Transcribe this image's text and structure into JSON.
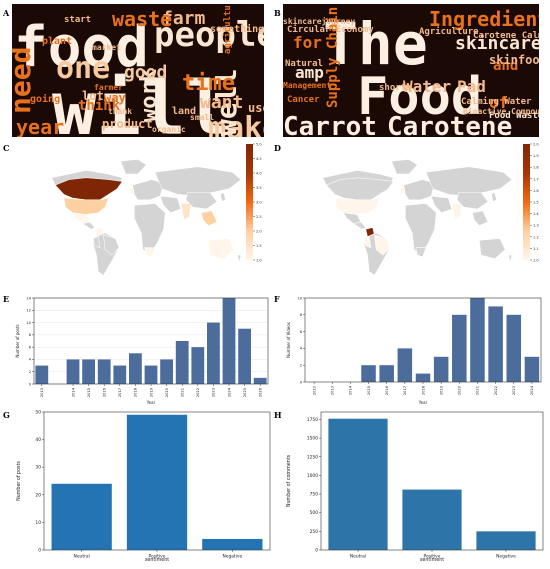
{
  "panels": {
    "A": "A",
    "B": "B",
    "C": "C",
    "D": "D",
    "E": "E",
    "F": "F",
    "G": "G",
    "H": "H"
  },
  "wordcloud_a": {
    "words": [
      {
        "text": "food",
        "weight": 10,
        "color": "#fdf0e2"
      },
      {
        "text": "will",
        "weight": 10,
        "color": "#fdf0e2"
      },
      {
        "text": "need",
        "weight": 5,
        "color": "#e8711c"
      },
      {
        "text": "year",
        "weight": 5,
        "color": "#e8711c"
      },
      {
        "text": "makes",
        "weight": 5,
        "color": "#f7c9a0"
      },
      {
        "text": "people",
        "weight": 6,
        "color": "#fbe6d2"
      },
      {
        "text": "one",
        "weight": 5,
        "color": "#f7c9a0"
      },
      {
        "text": "work",
        "weight": 4,
        "color": "#fbe6d2"
      },
      {
        "text": "well",
        "weight": 5,
        "color": "#fbe6d2"
      },
      {
        "text": "farm",
        "weight": 4,
        "color": "#f3b98d"
      },
      {
        "text": "waste",
        "weight": 3,
        "color": "#e8711c"
      },
      {
        "text": "time",
        "weight": 4,
        "color": "#e8711c"
      },
      {
        "text": "good",
        "weight": 3,
        "color": "#f7c9a0"
      },
      {
        "text": "want",
        "weight": 3,
        "color": "#f3b98d"
      },
      {
        "text": "think",
        "weight": 3,
        "color": "#e8711c"
      },
      {
        "text": "product",
        "weight": 2,
        "color": "#f3b98d"
      },
      {
        "text": "plant",
        "weight": 2,
        "color": "#e8711c"
      },
      {
        "text": "lot",
        "weight": 2,
        "color": "#f3b98d"
      },
      {
        "text": "way",
        "weight": 2,
        "color": "#e8711c"
      },
      {
        "text": "use",
        "weight": 2,
        "color": "#f3b98d"
      },
      {
        "text": "farmer",
        "weight": 1,
        "color": "#e8711c"
      },
      {
        "text": "land",
        "weight": 1,
        "color": "#f3b98d"
      },
      {
        "text": "thank",
        "weight": 1,
        "color": "#f3b98d"
      },
      {
        "text": "small",
        "weight": 1,
        "color": "#f3b98d"
      },
      {
        "text": "going",
        "weight": 1,
        "color": "#e8711c"
      },
      {
        "text": "organic",
        "weight": 1,
        "color": "#f3b98d"
      },
      {
        "text": "market",
        "weight": 1,
        "color": "#f3b98d"
      },
      {
        "text": "something",
        "weight": 1,
        "color": "#f3b98d"
      },
      {
        "text": "agriculture",
        "weight": 1,
        "color": "#e8711c"
      },
      {
        "text": "start",
        "weight": 1,
        "color": "#f3b98d"
      }
    ]
  },
  "wordcloud_b": {
    "words": [
      {
        "text": "The",
        "weight": 10,
        "color": "#fdf0e2"
      },
      {
        "text": "Food",
        "weight": 10,
        "color": "#fdf0e2"
      },
      {
        "text": "Carrot",
        "weight": 6,
        "color": "#fdf0e2"
      },
      {
        "text": "Carotene",
        "weight": 6,
        "color": "#fdf0e2"
      },
      {
        "text": "Ingredients",
        "weight": 4,
        "color": "#e8711c"
      },
      {
        "text": "skincare",
        "weight": 4,
        "color": "#fbe6d2"
      },
      {
        "text": "and",
        "weight": 4,
        "color": "#e8711c"
      },
      {
        "text": "Supply Chain",
        "weight": 3,
        "color": "#e8711c"
      },
      {
        "text": "Water",
        "weight": 3,
        "color": "#f3b98d"
      },
      {
        "text": "Pad",
        "weight": 3,
        "color": "#f3b98d"
      },
      {
        "text": "skinfood",
        "weight": 2,
        "color": "#f3b98d"
      },
      {
        "text": "for",
        "weight": 3,
        "color": "#e8711c"
      },
      {
        "text": "amp",
        "weight": 2,
        "color": "#fbe6d2"
      },
      {
        "text": "of",
        "weight": 3,
        "color": "#e8711c"
      },
      {
        "text": "Carotene Calming",
        "weight": 1,
        "color": "#f3b98d"
      },
      {
        "text": "Calming Water",
        "weight": 1,
        "color": "#f3b98d"
      },
      {
        "text": "Food Waste",
        "weight": 1,
        "color": "#fbe6d2"
      },
      {
        "text": "Circular Economy",
        "weight": 1,
        "color": "#f3b98d"
      },
      {
        "text": "Agriculture",
        "weight": 1,
        "color": "#f3b98d"
      },
      {
        "text": "Natural",
        "weight": 1,
        "color": "#f3b98d"
      },
      {
        "text": "shorts",
        "weight": 1,
        "color": "#f3b98d"
      },
      {
        "text": "Management",
        "weight": 1,
        "color": "#e8711c"
      },
      {
        "text": "Bioactive Compound",
        "weight": 1,
        "color": "#f3b98d"
      },
      {
        "text": "Cancer",
        "weight": 1,
        "color": "#e8711c"
      },
      {
        "text": "skincarejourney",
        "weight": 1,
        "color": "#f3b98d"
      }
    ]
  },
  "map_c": {
    "colorbar": {
      "min": 1.0,
      "max": 5.0,
      "ticks": [
        "5.0",
        "4.5",
        "4.0",
        "3.5",
        "3.0",
        "2.5",
        "2.0",
        "1.5",
        "1.0"
      ]
    },
    "highlighted": [
      {
        "region": "canada",
        "value": 5.0
      },
      {
        "region": "usa",
        "value": 2.0
      },
      {
        "region": "mexico",
        "value": 1.0
      },
      {
        "region": "colombia",
        "value": 1.0
      },
      {
        "region": "uk",
        "value": 1.0
      },
      {
        "region": "south-africa",
        "value": 1.0
      },
      {
        "region": "india",
        "value": 1.5
      },
      {
        "region": "southeast-asia",
        "value": 2.0
      },
      {
        "region": "australia",
        "value": 1.0
      }
    ]
  },
  "map_d": {
    "colorbar": {
      "min": 1.0,
      "max": 2.0,
      "ticks": [
        "2.0",
        "1.9",
        "1.8",
        "1.7",
        "1.6",
        "1.5",
        "1.4",
        "1.3",
        "1.2",
        "1.1",
        "1.0"
      ]
    },
    "highlighted": [
      {
        "region": "colombia",
        "value": 2.0
      },
      {
        "region": "usa",
        "value": 1.0
      },
      {
        "region": "uk",
        "value": 1.0
      },
      {
        "region": "brazil",
        "value": 1.0
      },
      {
        "region": "india",
        "value": 1.0
      },
      {
        "region": "peru",
        "value": 1.0
      }
    ]
  },
  "chart_data": [
    {
      "panel": "E",
      "type": "bar",
      "categories": [
        "2013",
        "2014",
        "2015",
        "2016",
        "2017",
        "2018",
        "2019",
        "2020",
        "2021",
        "2022",
        "2023",
        "2024",
        "2025",
        "2026"
      ],
      "values": [
        3,
        4,
        4,
        4,
        3,
        5,
        3,
        4,
        7,
        6,
        10,
        14,
        9,
        1
      ],
      "xlabel": "Year",
      "ylabel": "Number of posts",
      "ylim": [
        0,
        14
      ],
      "yticks": [
        0,
        2,
        4,
        6,
        8,
        10,
        12,
        14
      ],
      "gap_before_index": 1,
      "grid": true,
      "color": "#4c6c9c"
    },
    {
      "panel": "F",
      "type": "bar",
      "categories": [
        "2012",
        "2013",
        "2014",
        "2015",
        "2016",
        "2017",
        "2018",
        "2019",
        "2020",
        "2021",
        "2022",
        "2023",
        "2024"
      ],
      "values": [
        0,
        0,
        0,
        2,
        2,
        4,
        1,
        3,
        8,
        10,
        9,
        8,
        3
      ],
      "xlabel": "Year",
      "ylabel": "Number of Videos",
      "ylim": [
        0,
        10
      ],
      "yticks": [
        0,
        2,
        4,
        6,
        8,
        10
      ],
      "grid": false,
      "color": "#4c6c9c"
    },
    {
      "panel": "G",
      "type": "bar",
      "categories": [
        "Neutral",
        "Positive",
        "Negative"
      ],
      "values": [
        24,
        49,
        4
      ],
      "xlabel": "sentiment",
      "ylabel": "Number of posts",
      "ylim": [
        0,
        50
      ],
      "yticks": [
        0,
        10,
        20,
        30,
        40,
        50
      ],
      "grid": false,
      "color": "#2474b4"
    },
    {
      "panel": "H",
      "type": "bar",
      "categories": [
        "Neutral",
        "Positive",
        "Negative"
      ],
      "values": [
        1760,
        810,
        250
      ],
      "xlabel": "sentiment",
      "ylabel": "Number of comments",
      "ylim": [
        0,
        1850
      ],
      "yticks": [
        0,
        250,
        500,
        750,
        1000,
        1250,
        1500,
        1750
      ],
      "grid": false,
      "color": "#2d74a8"
    }
  ]
}
